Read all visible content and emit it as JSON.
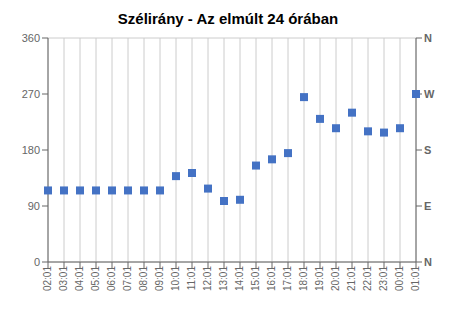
{
  "chart_data": {
    "type": "scatter",
    "title": "Szélirány - Az elmúlt 24 órában",
    "categories": [
      "02:01",
      "03:01",
      "04:01",
      "05:01",
      "06:01",
      "07:01",
      "08:01",
      "09:01",
      "10:01",
      "11:01",
      "12:01",
      "13:01",
      "14:01",
      "15:01",
      "16:01",
      "17:01",
      "18:01",
      "19:01",
      "20:01",
      "21:01",
      "22:01",
      "23:01",
      "00:01",
      "01:01"
    ],
    "values": [
      115,
      115,
      115,
      115,
      115,
      115,
      115,
      115,
      138,
      143,
      118,
      98,
      100,
      155,
      165,
      175,
      265,
      230,
      215,
      240,
      210,
      208,
      215,
      270
    ],
    "color": "#4472c4",
    "marker": "square",
    "ylim": [
      0,
      360
    ],
    "yticks": [
      0,
      90,
      180,
      270,
      360
    ],
    "y2lim": [
      0,
      360
    ],
    "y2ticks": [
      {
        "value": 0,
        "label": "N"
      },
      {
        "value": 90,
        "label": "E"
      },
      {
        "value": 180,
        "label": "S"
      },
      {
        "value": 270,
        "label": "W"
      },
      {
        "value": 360,
        "label": "N"
      }
    ],
    "grid": true
  }
}
